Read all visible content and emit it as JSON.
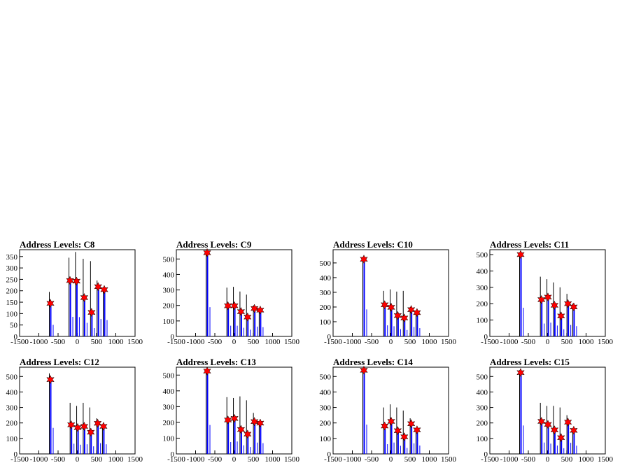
{
  "chart_data": [
    {
      "type": "bar",
      "title": "Address Levels: C8",
      "xlabel": "",
      "ylabel": "",
      "xlim": [
        -1500,
        1500
      ],
      "ylim": [
        0,
        380
      ],
      "xticks": [
        "-1500",
        "-1000",
        "-500",
        "0",
        "500",
        "1000",
        "1500"
      ],
      "yticks": [
        "0",
        "50",
        "100",
        "150",
        "200",
        "250",
        "300",
        "350"
      ],
      "ytick_values": [
        0,
        50,
        100,
        150,
        200,
        250,
        300,
        350
      ],
      "peaks": [
        {
          "x": -700,
          "y": 145,
          "black": 195
        },
        {
          "x": -190,
          "y": 245,
          "black": 345
        },
        {
          "x": -20,
          "y": 242,
          "black": 370
        },
        {
          "x": 180,
          "y": 170,
          "black": 340
        },
        {
          "x": 370,
          "y": 105,
          "black": 330
        },
        {
          "x": 540,
          "y": 218,
          "black": 245
        },
        {
          "x": 700,
          "y": 205,
          "black": 215
        }
      ],
      "bar_color": "#0000ff",
      "marker_color": "#ff0000"
    },
    {
      "type": "bar",
      "title": "Address Levels: C9",
      "xlabel": "",
      "ylabel": "",
      "xlim": [
        -1500,
        1500
      ],
      "ylim": [
        0,
        560
      ],
      "xticks": [
        "-1500",
        "-1000",
        "-500",
        "0",
        "500",
        "1000",
        "1500"
      ],
      "yticks": [
        "0",
        "100",
        "200",
        "300",
        "400",
        "500"
      ],
      "ytick_values": [
        0,
        100,
        200,
        300,
        400,
        500
      ],
      "peaks": [
        {
          "x": -700,
          "y": 540,
          "black": 540
        },
        {
          "x": -160,
          "y": 198,
          "black": 315
        },
        {
          "x": 10,
          "y": 198,
          "black": 320
        },
        {
          "x": 180,
          "y": 160,
          "black": 290
        },
        {
          "x": 350,
          "y": 125,
          "black": 270
        },
        {
          "x": 530,
          "y": 180,
          "black": 200
        },
        {
          "x": 680,
          "y": 170,
          "black": 180
        }
      ],
      "bar_color": "#0000ff",
      "marker_color": "#ff0000"
    },
    {
      "type": "bar",
      "title": "Address Levels: C10",
      "xlabel": "",
      "ylabel": "",
      "xlim": [
        -1500,
        1500
      ],
      "ylim": [
        0,
        590
      ],
      "xticks": [
        "-1500",
        "-1000",
        "-500",
        "0",
        "500",
        "1000",
        "1500"
      ],
      "yticks": [
        "0",
        "100",
        "200",
        "300",
        "400",
        "500"
      ],
      "ytick_values": [
        0,
        100,
        200,
        300,
        400,
        500
      ],
      "peaks": [
        {
          "x": -700,
          "y": 525,
          "black": 540
        },
        {
          "x": -160,
          "y": 215,
          "black": 310
        },
        {
          "x": 10,
          "y": 198,
          "black": 320
        },
        {
          "x": 180,
          "y": 142,
          "black": 305
        },
        {
          "x": 350,
          "y": 125,
          "black": 310
        },
        {
          "x": 530,
          "y": 182,
          "black": 200
        },
        {
          "x": 680,
          "y": 162,
          "black": 175
        }
      ],
      "bar_color": "#0000ff",
      "marker_color": "#ff0000"
    },
    {
      "type": "bar",
      "title": "Address Levels: C11",
      "xlabel": "",
      "ylabel": "",
      "xlim": [
        -1500,
        1500
      ],
      "ylim": [
        0,
        530
      ],
      "xticks": [
        "-1500",
        "-1000",
        "-500",
        "0",
        "500",
        "1000",
        "1500"
      ],
      "yticks": [
        "0",
        "100",
        "200",
        "300",
        "400",
        "500"
      ],
      "ytick_values": [
        0,
        100,
        200,
        300,
        400,
        500
      ],
      "peaks": [
        {
          "x": -700,
          "y": 500,
          "black": 500
        },
        {
          "x": -160,
          "y": 225,
          "black": 365
        },
        {
          "x": 10,
          "y": 240,
          "black": 350
        },
        {
          "x": 180,
          "y": 190,
          "black": 330
        },
        {
          "x": 350,
          "y": 125,
          "black": 300
        },
        {
          "x": 530,
          "y": 200,
          "black": 260
        },
        {
          "x": 680,
          "y": 180,
          "black": 200
        }
      ],
      "bar_color": "#0000ff",
      "marker_color": "#ff0000"
    },
    {
      "type": "bar",
      "title": "Address Levels: C12",
      "xlabel": "",
      "ylabel": "",
      "xlim": [
        -1500,
        1500
      ],
      "ylim": [
        0,
        560
      ],
      "xticks": [
        "-1500",
        "-1000",
        "-500",
        "0",
        "500",
        "1000",
        "1500"
      ],
      "yticks": [
        "0",
        "100",
        "200",
        "300",
        "400",
        "500"
      ],
      "ytick_values": [
        0,
        100,
        200,
        300,
        400,
        500
      ],
      "peaks": [
        {
          "x": -700,
          "y": 480,
          "black": 520
        },
        {
          "x": -160,
          "y": 188,
          "black": 330
        },
        {
          "x": 10,
          "y": 170,
          "black": 310
        },
        {
          "x": 180,
          "y": 178,
          "black": 330
        },
        {
          "x": 350,
          "y": 140,
          "black": 300
        },
        {
          "x": 530,
          "y": 198,
          "black": 230
        },
        {
          "x": 680,
          "y": 178,
          "black": 190
        }
      ],
      "bar_color": "#0000ff",
      "marker_color": "#ff0000"
    },
    {
      "type": "bar",
      "title": "Address Levels: C13",
      "xlabel": "",
      "ylabel": "",
      "xlim": [
        -1500,
        1500
      ],
      "ylim": [
        0,
        550
      ],
      "xticks": [
        "-1500",
        "-1000",
        "-500",
        "0",
        "500",
        "1000",
        "1500"
      ],
      "yticks": [
        "0",
        "100",
        "200",
        "300",
        "400",
        "500"
      ],
      "ytick_values": [
        0,
        100,
        200,
        300,
        400,
        500
      ],
      "peaks": [
        {
          "x": -700,
          "y": 525,
          "black": 525
        },
        {
          "x": -160,
          "y": 215,
          "black": 360
        },
        {
          "x": 10,
          "y": 225,
          "black": 355
        },
        {
          "x": 180,
          "y": 155,
          "black": 365
        },
        {
          "x": 350,
          "y": 125,
          "black": 340
        },
        {
          "x": 530,
          "y": 205,
          "black": 260
        },
        {
          "x": 680,
          "y": 195,
          "black": 200
        }
      ],
      "bar_color": "#0000ff",
      "marker_color": "#ff0000"
    },
    {
      "type": "bar",
      "title": "Address Levels: C14",
      "xlabel": "",
      "ylabel": "",
      "xlim": [
        -1500,
        1500
      ],
      "ylim": [
        0,
        560
      ],
      "xticks": [
        "-1500",
        "-1000",
        "-500",
        "0",
        "500",
        "1000",
        "1500"
      ],
      "yticks": [
        "0",
        "100",
        "200",
        "300",
        "400",
        "500"
      ],
      "ytick_values": [
        0,
        100,
        200,
        300,
        400,
        500
      ],
      "peaks": [
        {
          "x": -700,
          "y": 540,
          "black": 540
        },
        {
          "x": -160,
          "y": 180,
          "black": 300
        },
        {
          "x": 10,
          "y": 210,
          "black": 320
        },
        {
          "x": 180,
          "y": 150,
          "black": 300
        },
        {
          "x": 350,
          "y": 110,
          "black": 280
        },
        {
          "x": 530,
          "y": 195,
          "black": 230
        },
        {
          "x": 680,
          "y": 155,
          "black": 165
        }
      ],
      "bar_color": "#0000ff",
      "marker_color": "#ff0000"
    },
    {
      "type": "bar",
      "title": "Address Levels: C15",
      "xlabel": "",
      "ylabel": "",
      "xlim": [
        -1500,
        1500
      ],
      "ylim": [
        0,
        560
      ],
      "xticks": [
        "-1500",
        "-1000",
        "-500",
        "0",
        "500",
        "1000",
        "1500"
      ],
      "yticks": [
        "0",
        "100",
        "200",
        "300",
        "400",
        "500"
      ],
      "ytick_values": [
        0,
        100,
        200,
        300,
        400,
        500
      ],
      "peaks": [
        {
          "x": -700,
          "y": 525,
          "black": 540
        },
        {
          "x": -160,
          "y": 210,
          "black": 330
        },
        {
          "x": 10,
          "y": 190,
          "black": 310
        },
        {
          "x": 180,
          "y": 155,
          "black": 310
        },
        {
          "x": 350,
          "y": 105,
          "black": 300
        },
        {
          "x": 530,
          "y": 205,
          "black": 250
        },
        {
          "x": 680,
          "y": 152,
          "black": 165
        }
      ],
      "bar_color": "#0000ff",
      "marker_color": "#ff0000"
    }
  ]
}
